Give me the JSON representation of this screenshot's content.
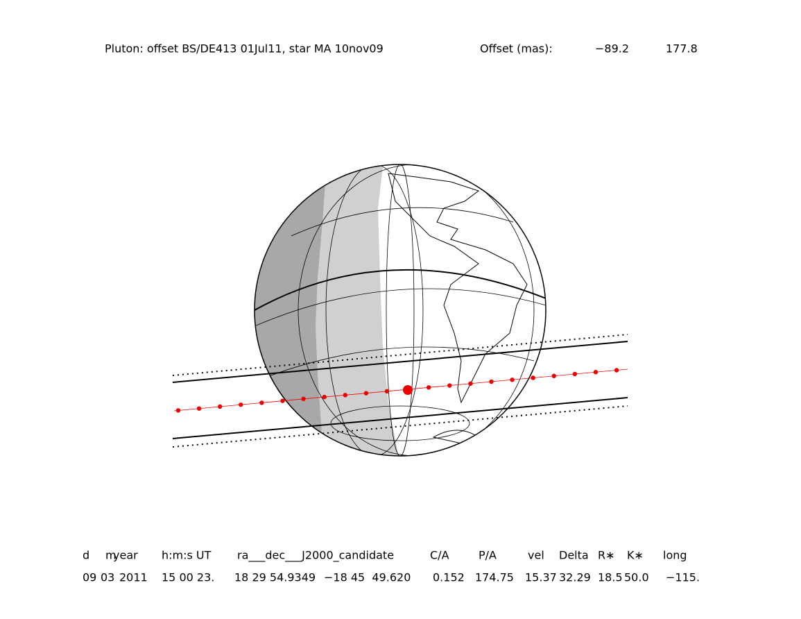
{
  "header": {
    "title": "Pluton: offset BS/DE413 01Jul11, star MA 10nov09",
    "offset_label": "Offset (mas):",
    "offsets": [
      "−89.2",
      "177.8"
    ]
  },
  "table": {
    "columns": [
      "d",
      "m",
      "year",
      "h:m:s UT",
      "ra___dec___J2000_candidate",
      "C/A",
      "P/A",
      "vel",
      "Delta",
      "R∗",
      "K∗",
      "long"
    ],
    "rows": [
      [
        "09",
        "03",
        "2011",
        "15 00 23.",
        "18 29 54.9349",
        "−18 45  49.620",
        "0.152",
        "174.75",
        "15.37",
        "32.29",
        "18.5",
        "50.0",
        "−115."
      ]
    ]
  }
}
